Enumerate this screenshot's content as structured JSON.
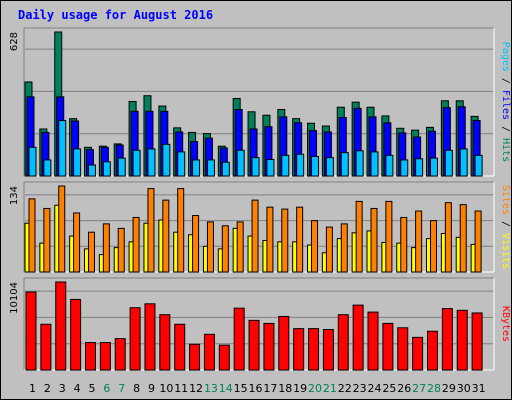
{
  "title": "Daily usage for August 2016",
  "colors": {
    "title": "#0000ff",
    "hits": "#00805c",
    "files": "#0000ff",
    "pages": "#00c0ff",
    "visits": "#ffff00",
    "sites": "#ff8000",
    "kbytes": "#ff0000",
    "weekday": "#000000",
    "weekend": "#00805c",
    "panel": "#c0c0c0"
  },
  "chart_data": [
    {
      "type": "bar",
      "name": "hits-files-pages",
      "y_max_label": "628",
      "ylim": [
        0,
        628
      ],
      "legend": [
        "Pages",
        "Files",
        "Hits"
      ],
      "categories": [
        "1",
        "2",
        "3",
        "4",
        "5",
        "6",
        "7",
        "8",
        "9",
        "10",
        "11",
        "12",
        "13",
        "14",
        "15",
        "16",
        "17",
        "18",
        "19",
        "20",
        "21",
        "22",
        "23",
        "24",
        "25",
        "26",
        "27",
        "28",
        "29",
        "30",
        "31"
      ],
      "series": [
        {
          "name": "Hits",
          "values": [
            410,
            205,
            628,
            250,
            125,
            130,
            140,
            325,
            350,
            305,
            210,
            190,
            185,
            130,
            338,
            280,
            265,
            290,
            250,
            230,
            218,
            300,
            322,
            300,
            262,
            208,
            200,
            212,
            328,
            328,
            260
          ]
        },
        {
          "name": "Files",
          "values": [
            345,
            190,
            345,
            240,
            115,
            125,
            135,
            282,
            282,
            282,
            192,
            150,
            165,
            122,
            290,
            205,
            215,
            258,
            232,
            198,
            192,
            255,
            295,
            258,
            232,
            188,
            170,
            195,
            298,
            302,
            242
          ]
        },
        {
          "name": "Pages",
          "values": [
            125,
            70,
            242,
            118,
            48,
            62,
            78,
            112,
            118,
            138,
            105,
            70,
            70,
            60,
            112,
            80,
            72,
            90,
            95,
            85,
            80,
            102,
            110,
            105,
            90,
            70,
            75,
            78,
            112,
            118,
            90
          ]
        }
      ]
    },
    {
      "type": "bar",
      "name": "visits-sites",
      "y_max_label": "134",
      "ylim": [
        0,
        134
      ],
      "legend": [
        "Sites",
        "Visits"
      ],
      "categories": [
        "1",
        "2",
        "3",
        "4",
        "5",
        "6",
        "7",
        "8",
        "9",
        "10",
        "11",
        "12",
        "13",
        "14",
        "15",
        "16",
        "17",
        "18",
        "19",
        "20",
        "21",
        "22",
        "23",
        "24",
        "25",
        "26",
        "27",
        "28",
        "29",
        "30",
        "31"
      ],
      "series": [
        {
          "name": "Visits",
          "values": [
            76,
            45,
            104,
            56,
            36,
            27,
            38,
            47,
            76,
            81,
            62,
            58,
            40,
            36,
            68,
            56,
            49,
            47,
            47,
            42,
            30,
            52,
            61,
            64,
            46,
            45,
            38,
            52,
            60,
            54,
            43
          ]
        },
        {
          "name": "Sites",
          "values": [
            114,
            99,
            134,
            92,
            62,
            75,
            68,
            85,
            130,
            112,
            130,
            88,
            78,
            72,
            78,
            112,
            101,
            98,
            101,
            80,
            70,
            75,
            110,
            99,
            110,
            85,
            95,
            80,
            108,
            105,
            95
          ]
        }
      ]
    },
    {
      "type": "bar",
      "name": "kbytes",
      "y_max_label": "10104",
      "ylim": [
        0,
        10104
      ],
      "legend": [
        "KBytes"
      ],
      "categories": [
        "1",
        "2",
        "3",
        "4",
        "5",
        "6",
        "7",
        "8",
        "9",
        "10",
        "11",
        "12",
        "13",
        "14",
        "15",
        "16",
        "17",
        "18",
        "19",
        "20",
        "21",
        "22",
        "23",
        "24",
        "25",
        "26",
        "27",
        "28",
        "29",
        "30",
        "31"
      ],
      "series": [
        {
          "name": "KBytes",
          "values": [
            8950,
            5250,
            10104,
            8100,
            3150,
            3150,
            3600,
            7150,
            7600,
            6350,
            5250,
            2950,
            4100,
            2850,
            7100,
            5700,
            5350,
            6150,
            4750,
            4750,
            4650,
            6350,
            7450,
            6650,
            5350,
            4850,
            3750,
            4450,
            7050,
            6850,
            6550
          ]
        }
      ]
    }
  ]
}
